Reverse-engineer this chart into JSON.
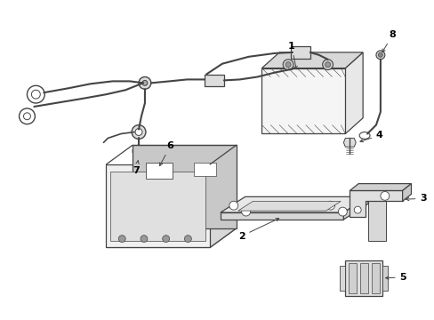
{
  "background_color": "#ffffff",
  "line_color": "#555555",
  "label_color": "#000000",
  "fig_width": 4.89,
  "fig_height": 3.6,
  "dpi": 100
}
